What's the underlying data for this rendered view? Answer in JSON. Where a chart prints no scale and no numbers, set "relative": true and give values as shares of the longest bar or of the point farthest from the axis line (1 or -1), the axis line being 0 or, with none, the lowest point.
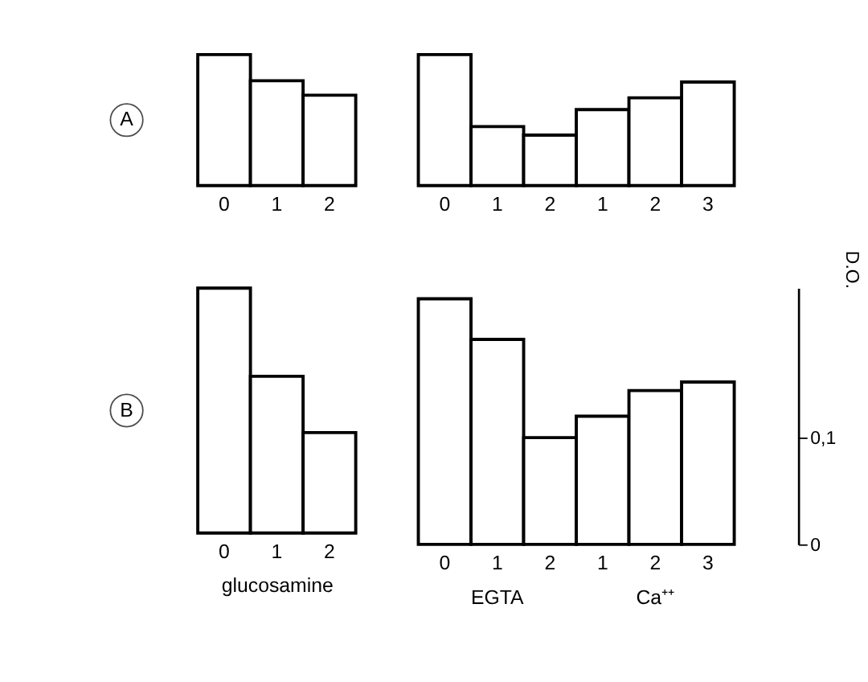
{
  "chart_data": [
    {
      "type": "bar",
      "title": "A",
      "categories": [
        "0",
        "1",
        "2"
      ],
      "values": [
        1,
        0.8,
        0.69
      ],
      "color": "#ffffff",
      "relative": true,
      "tick_labels": "x"
    },
    {
      "type": "bar",
      "categories": [
        "0",
        "1",
        "2",
        "1",
        "2",
        "3"
      ],
      "values": [
        1,
        0.45,
        0.385,
        0.58,
        0.67,
        0.79
      ],
      "color": "#ffffff",
      "relative": true,
      "tick_labels": "x"
    },
    {
      "type": "bar",
      "title": "B",
      "xlabel": "glucosamine",
      "categories": [
        "0",
        "1",
        "2"
      ],
      "values": [
        1,
        0.64,
        0.41
      ],
      "color": "#ffffff",
      "relative": true,
      "tick_labels": "x"
    },
    {
      "type": "bar",
      "categories": [
        "0",
        "1",
        "2",
        "1",
        "2",
        "3"
      ],
      "values": [
        0.23,
        0.192,
        0.1,
        0.12,
        0.144,
        0.152
      ],
      "color": "#ffffff",
      "ylim": [
        0,
        0.24
      ],
      "ylabel": "D.O.",
      "yticks": [
        0,
        {
          "value": 0.1,
          "label": "0,1"
        }
      ],
      "annotations": [
        "EGTA",
        "Ca⁺⁺"
      ]
    }
  ]
}
